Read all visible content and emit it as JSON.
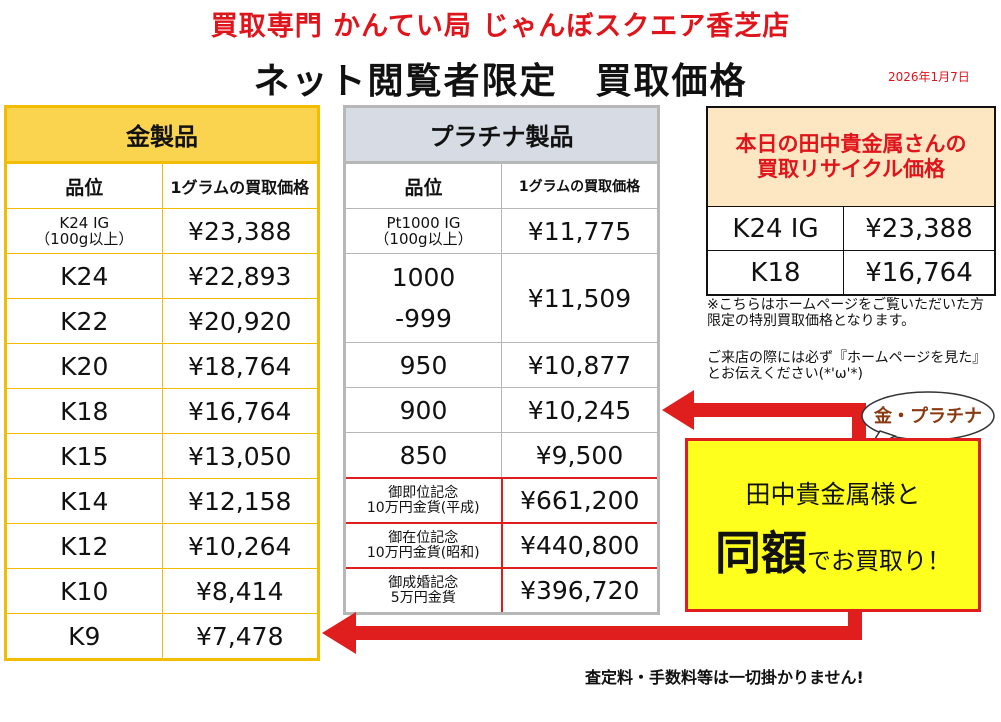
{
  "header": {
    "store_name": "買取専門 かんてい局 じゃんぼスクエア香芝店",
    "title": "ネット閲覧者限定　買取価格",
    "date": "2026年1月7日"
  },
  "gold": {
    "title": "金製品",
    "col_grade": "品位",
    "col_price": "1グラムの買取価格",
    "rows": [
      {
        "grade": "K24 IG",
        "grade_sub": "（100g以上）",
        "price": "¥23,388"
      },
      {
        "grade": "K24",
        "price": "¥22,893"
      },
      {
        "grade": "K22",
        "price": "¥20,920"
      },
      {
        "grade": "K20",
        "price": "¥18,764"
      },
      {
        "grade": "K18",
        "price": "¥16,764"
      },
      {
        "grade": "K15",
        "price": "¥13,050"
      },
      {
        "grade": "K14",
        "price": "¥12,158"
      },
      {
        "grade": "K12",
        "price": "¥10,264"
      },
      {
        "grade": "K10",
        "price": "¥8,414"
      },
      {
        "grade": "K9",
        "price": "¥7,478"
      }
    ]
  },
  "platinum": {
    "title": "プラチナ製品",
    "col_grade": "品位",
    "col_price": "1グラムの買取価格",
    "rows": [
      {
        "grade": "Pt1000 IG",
        "grade_sub": "（100g以上）",
        "price": "¥11,775"
      },
      {
        "grade": "1000",
        "grade_sub": "-999",
        "price": "¥11,509"
      },
      {
        "grade": "950",
        "price": "¥10,877"
      },
      {
        "grade": "900",
        "price": "¥10,245"
      },
      {
        "grade": "850",
        "price": "¥9,500"
      }
    ],
    "coins": [
      {
        "line1": "御即位記念",
        "line2": "10万円金貨(平成)",
        "price": "¥661,200"
      },
      {
        "line1": "御在位記念",
        "line2": "10万円金貨(昭和)",
        "price": "¥440,800"
      },
      {
        "line1": "御成婚記念",
        "line2": "5万円金貨",
        "price": "¥396,720"
      }
    ]
  },
  "tanaka": {
    "head_line1": "本日の田中貴金属さんの",
    "head_line2": "買取リサイクル価格",
    "rows": [
      {
        "grade": "K24 IG",
        "price": "¥23,388"
      },
      {
        "grade": "K18",
        "price": "¥16,764"
      }
    ]
  },
  "notes": {
    "note1": "※こちらはホームページをご覧いただいた方限定の特別買取価格となります。",
    "note2": "ご来店の際には必ず『ホームページを見た』とお伝えください(*'ω'*)"
  },
  "promo": {
    "bubble": "金・プラチナ",
    "line1": "田中貴金属様と",
    "big": "同額",
    "line2_rest": "でお買取り！"
  },
  "footer": "査定料・手数料等は一切掛かりません!",
  "colors": {
    "red": "#e0141b",
    "gold_border": "#f2bd00",
    "gold_head": "#fad34f",
    "plat_head": "#d7dbe3",
    "promo_bg": "#ffff1e"
  }
}
